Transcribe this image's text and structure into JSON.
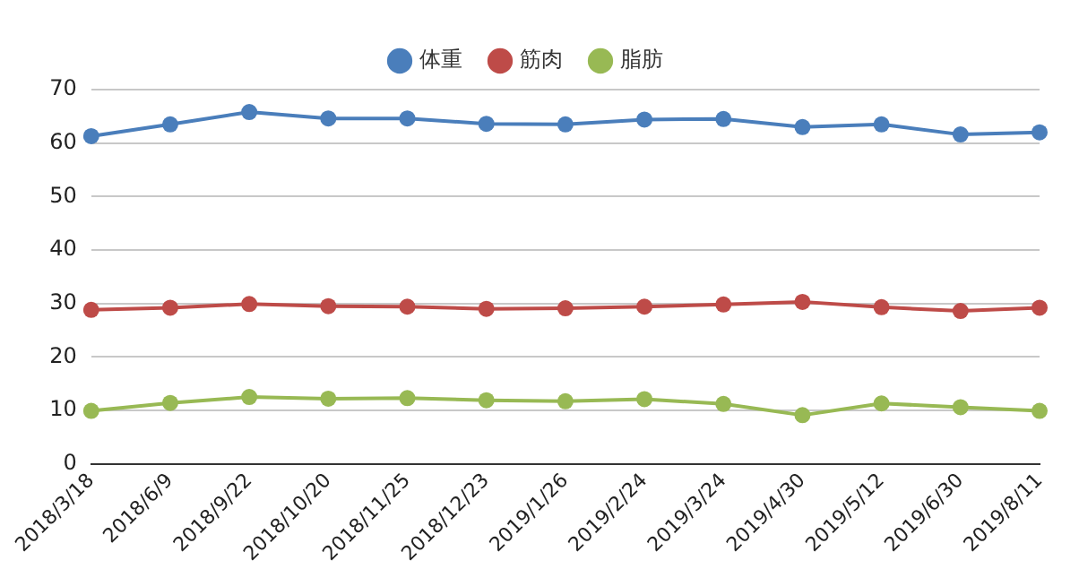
{
  "chart_data": {
    "type": "line",
    "categories": [
      "2018/3/18",
      "2018/6/9",
      "2018/9/22",
      "2018/10/20",
      "2018/11/25",
      "2018/12/23",
      "2019/1/26",
      "2019/2/24",
      "2019/3/24",
      "2019/4/30",
      "2019/5/12",
      "2019/6/30",
      "2019/8/11"
    ],
    "series": [
      {
        "name": "体重",
        "color": "#4a7ebb",
        "values": [
          61.3,
          63.5,
          65.8,
          64.6,
          64.6,
          63.6,
          63.5,
          64.4,
          64.5,
          63.0,
          63.5,
          61.6,
          62.0
        ]
      },
      {
        "name": "筋肉",
        "color": "#be4b48",
        "values": [
          28.8,
          29.2,
          29.9,
          29.5,
          29.4,
          29.0,
          29.1,
          29.4,
          29.8,
          30.3,
          29.3,
          28.6,
          29.2
        ]
      },
      {
        "name": "脂肪",
        "color": "#98b954",
        "values": [
          9.9,
          11.4,
          12.5,
          12.2,
          12.3,
          11.9,
          11.7,
          12.1,
          11.2,
          9.1,
          11.3,
          10.6,
          9.9
        ]
      }
    ],
    "ylim": [
      0,
      70
    ],
    "yticks": [
      0,
      10,
      20,
      30,
      40,
      50,
      60,
      70
    ],
    "grid": "y",
    "legend": "top",
    "marker": "circle",
    "line_style": "solid"
  }
}
